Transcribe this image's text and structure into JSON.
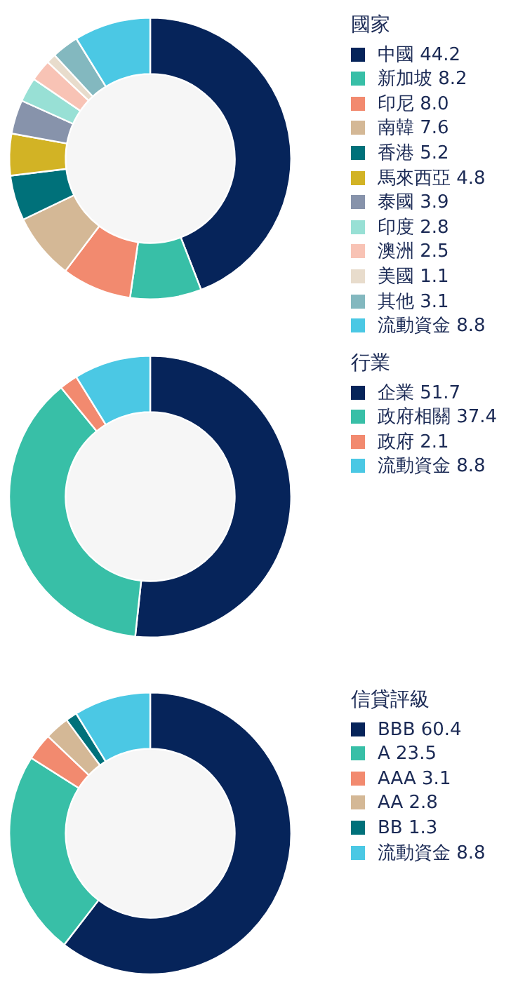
{
  "chart_data": [
    {
      "type": "donut",
      "legend_title": "國家",
      "legend": "right",
      "categories": [
        "中國",
        "新加坡",
        "印尼",
        "南韓",
        "香港",
        "馬來西亞",
        "泰國",
        "印度",
        "澳洲",
        "美國",
        "其他",
        "流動資金"
      ],
      "values": [
        44.2,
        8.2,
        8.0,
        7.6,
        5.2,
        4.8,
        3.9,
        2.8,
        2.5,
        1.1,
        3.1,
        8.8
      ],
      "value_labels": [
        "44.2",
        "8.2",
        "8.0",
        "7.6",
        "5.2",
        "4.8",
        "3.9",
        "2.8",
        "2.5",
        "1.1",
        "3.1",
        "8.8"
      ],
      "colors": [
        "#06245a",
        "#38bfa7",
        "#f28a6f",
        "#d4b896",
        "#00717a",
        "#d2b325",
        "#8793ab",
        "#98e0d5",
        "#f8c3b5",
        "#e8dccc",
        "#83b8bf",
        "#4bc8e4"
      ]
    },
    {
      "type": "donut",
      "legend_title": "行業",
      "legend": "right",
      "categories": [
        "企業",
        "政府相關",
        "政府",
        "流動資金"
      ],
      "values": [
        51.7,
        37.4,
        2.1,
        8.8
      ],
      "value_labels": [
        "51.7",
        "37.4",
        "2.1",
        "8.8"
      ],
      "colors": [
        "#06245a",
        "#38bfa7",
        "#f28a6f",
        "#4bc8e4"
      ]
    },
    {
      "type": "donut",
      "legend_title": "信貸評級",
      "legend": "right",
      "categories": [
        "BBB",
        "A",
        "AAA",
        "AA",
        "BB",
        "流動資金"
      ],
      "values": [
        60.4,
        23.5,
        3.1,
        2.8,
        1.3,
        8.8
      ],
      "value_labels": [
        "60.4",
        "23.5",
        "3.1",
        "2.8",
        "1.3",
        "8.8"
      ],
      "colors": [
        "#06245a",
        "#38bfa7",
        "#f28a6f",
        "#d4b896",
        "#00717a",
        "#4bc8e4"
      ]
    }
  ]
}
